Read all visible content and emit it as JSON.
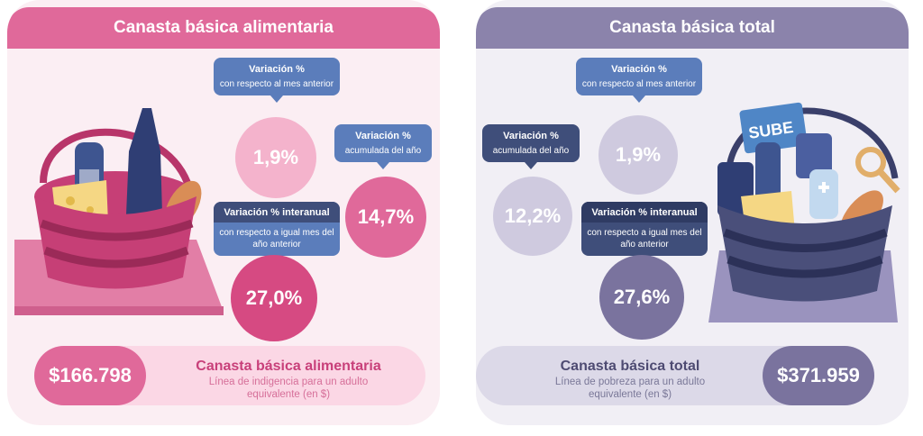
{
  "left": {
    "title": "Canasta básica alimentaria",
    "tag_monthly": {
      "title": "Variación %",
      "sub": "con respecto al mes anterior"
    },
    "val_monthly": "1,9%",
    "tag_ytd": {
      "title": "Variación %",
      "sub": "acumulada del año"
    },
    "val_ytd": "14,7%",
    "tag_yoy": {
      "title": "Variación % interanual",
      "sub": "con respecto a igual mes del año anterior"
    },
    "val_yoy": "27,0%",
    "amount": "$166.798",
    "bar_title": "Canasta básica alimentaria",
    "bar_sub": "Línea de indigencia para un adulto equivalente (en $)"
  },
  "right": {
    "title": "Canasta básica total",
    "tag_monthly": {
      "title": "Variación %",
      "sub": "con respecto al mes anterior"
    },
    "val_monthly": "1,9%",
    "tag_ytd": {
      "title": "Variación %",
      "sub": "acumulada del año"
    },
    "val_ytd": "12,2%",
    "tag_yoy": {
      "title": "Variación % interanual",
      "sub": "con respecto a igual mes del año anterior"
    },
    "val_yoy": "27,6%",
    "amount": "$371.959",
    "bar_title": "Canasta básica total",
    "bar_sub": "Línea de pobreza para un adulto equivalente (en $)",
    "card_label": "SUBE"
  },
  "colors": {
    "pink": "#e0699a",
    "pink_light": "#f4b3cc",
    "pink_dark": "#d64a82",
    "purple": "#8b83ab",
    "purple_light": "#cfcadf",
    "purple_dark": "#7a739e",
    "tag_blue": "#5b7dbb",
    "tag_navy": "#3f4e7a"
  }
}
